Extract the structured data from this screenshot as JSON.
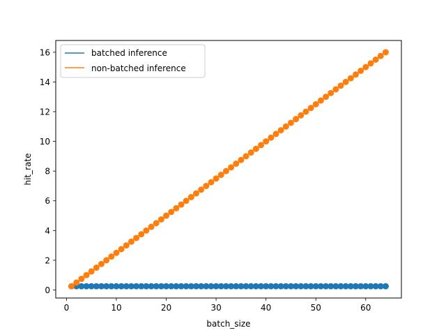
{
  "chart_data": {
    "type": "line",
    "xlabel": "batch_size",
    "ylabel": "hit_rate",
    "xlim": [
      -2.15,
      67.15
    ],
    "ylim": [
      -0.54,
      16.79
    ],
    "xticks": [
      0,
      10,
      20,
      30,
      40,
      50,
      60
    ],
    "yticks": [
      0,
      2,
      4,
      6,
      8,
      10,
      12,
      14,
      16
    ],
    "grid": false,
    "legend_position": "upper-left",
    "x_range": [
      1,
      64
    ],
    "series": [
      {
        "name": "batched inference",
        "color": "#1f77b4",
        "marker": "circle",
        "start_x": 1,
        "start_y": 0.25,
        "end_x": 64,
        "end_y": 0.25,
        "formula": "y = 0.25"
      },
      {
        "name": "non-batched inference",
        "color": "#ff7f0e",
        "marker": "circle",
        "start_x": 1,
        "start_y": 0.25,
        "end_x": 64,
        "end_y": 16.0,
        "formula": "y = 0.25 * x"
      }
    ]
  }
}
